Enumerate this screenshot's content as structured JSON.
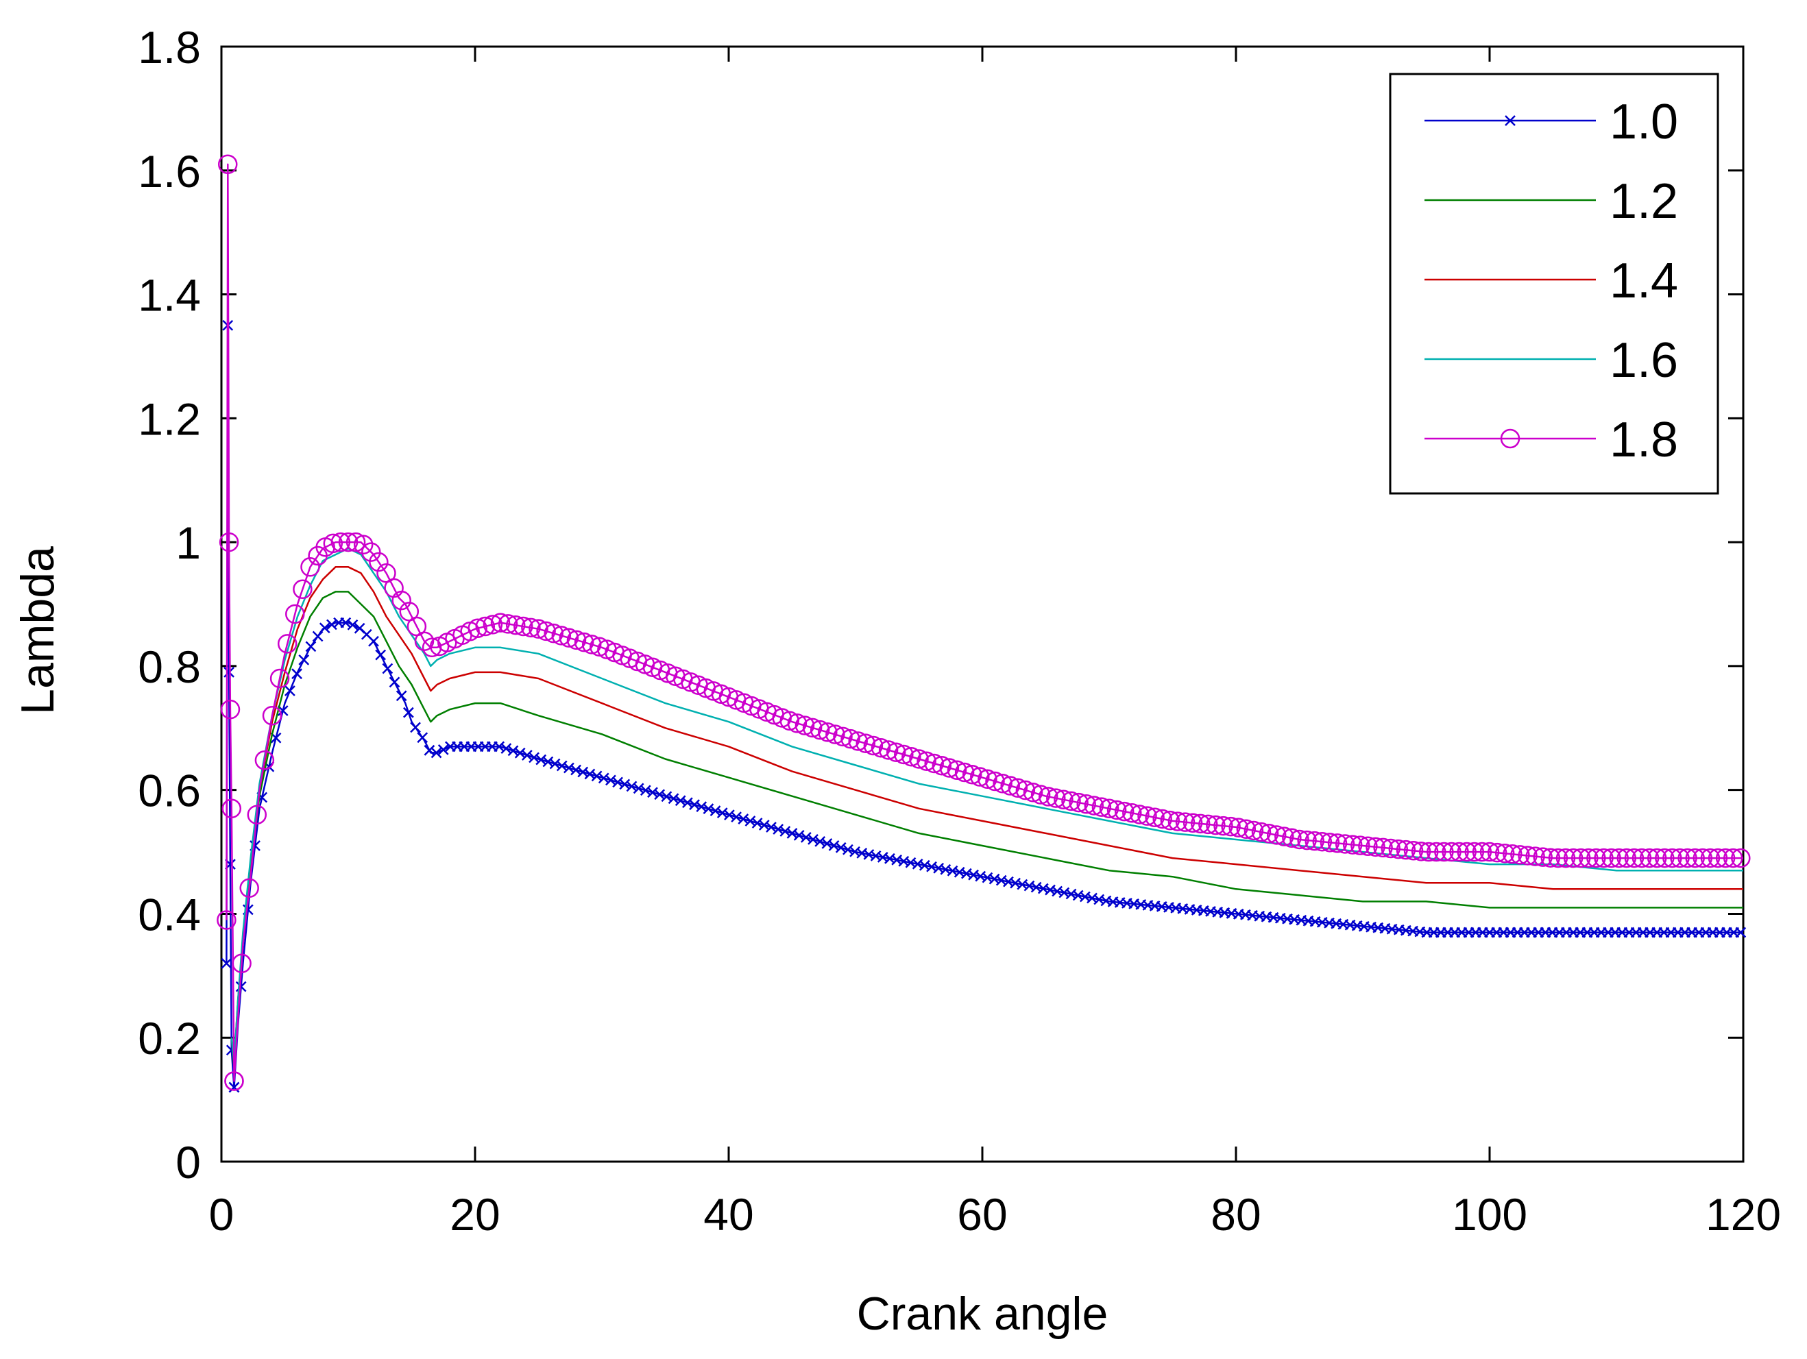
{
  "chart_data": {
    "type": "line",
    "title": "",
    "xlabel": "Crank angle",
    "ylabel": "Lambda",
    "xlim": [
      0,
      120
    ],
    "ylim": [
      0,
      1.8
    ],
    "xticks": [
      "0",
      "20",
      "40",
      "60",
      "80",
      "100",
      "120"
    ],
    "yticks": [
      "0",
      "0.2",
      "0.4",
      "0.6",
      "0.8",
      "1",
      "1.2",
      "1.4",
      "1.6",
      "1.8"
    ],
    "grid": false,
    "legend_position": "top-right",
    "series": [
      {
        "name": "1.0",
        "color": "#0000cc",
        "marker": "x",
        "x": [
          0.4,
          0.5,
          0.6,
          0.7,
          0.8,
          1.0,
          1.3,
          1.7,
          2.3,
          3.0,
          4.0,
          5.0,
          6.0,
          7.0,
          8.0,
          9.0,
          10.0,
          11.0,
          12.0,
          13.0,
          14.0,
          14.5,
          15.0,
          16.0,
          16.5,
          17.0,
          18.0,
          20.0,
          22.0,
          25.0,
          30.0,
          35.0,
          40.0,
          45.0,
          50.0,
          55.0,
          60.0,
          65.0,
          70.0,
          75.0,
          80.0,
          85.0,
          90.0,
          95.0,
          97.0,
          100.0,
          105.0,
          110.0,
          115.0,
          120.0
        ],
        "y": [
          0.32,
          1.35,
          0.79,
          0.48,
          0.18,
          0.12,
          0.22,
          0.32,
          0.45,
          0.57,
          0.66,
          0.74,
          0.79,
          0.83,
          0.86,
          0.87,
          0.87,
          0.86,
          0.84,
          0.8,
          0.76,
          0.74,
          0.71,
          0.68,
          0.66,
          0.66,
          0.67,
          0.67,
          0.67,
          0.65,
          0.62,
          0.59,
          0.56,
          0.53,
          0.5,
          0.48,
          0.46,
          0.44,
          0.42,
          0.41,
          0.4,
          0.39,
          0.38,
          0.37,
          0.37,
          0.37,
          0.37,
          0.37,
          0.37,
          0.37
        ]
      },
      {
        "name": "1.2",
        "color": "#007f00",
        "marker": "none",
        "x": [
          0.8,
          1.0,
          1.3,
          1.7,
          2.3,
          3.0,
          4.0,
          5.0,
          6.0,
          7.0,
          8.0,
          9.0,
          10.0,
          11.0,
          12.0,
          13.0,
          14.0,
          15.0,
          16.0,
          16.5,
          17.0,
          18.0,
          20.0,
          22.0,
          25.0,
          30.0,
          35.0,
          40.0,
          45.0,
          50.0,
          55.0,
          60.0,
          65.0,
          70.0,
          75.0,
          80.0,
          85.0,
          90.0,
          95.0,
          100.0,
          105.0,
          110.0,
          115.0,
          120.0
        ],
        "y": [
          0.2,
          0.15,
          0.25,
          0.35,
          0.47,
          0.59,
          0.69,
          0.77,
          0.83,
          0.88,
          0.91,
          0.92,
          0.92,
          0.9,
          0.88,
          0.84,
          0.8,
          0.77,
          0.73,
          0.71,
          0.72,
          0.73,
          0.74,
          0.74,
          0.72,
          0.69,
          0.65,
          0.62,
          0.59,
          0.56,
          0.53,
          0.51,
          0.49,
          0.47,
          0.46,
          0.44,
          0.43,
          0.42,
          0.42,
          0.41,
          0.41,
          0.41,
          0.41,
          0.41
        ]
      },
      {
        "name": "1.4",
        "color": "#cc0000",
        "marker": "none",
        "x": [
          0.8,
          1.0,
          1.3,
          1.7,
          2.3,
          3.0,
          4.0,
          5.0,
          6.0,
          7.0,
          8.0,
          9.0,
          10.0,
          11.0,
          12.0,
          13.0,
          14.0,
          15.0,
          16.0,
          16.5,
          17.0,
          18.0,
          20.0,
          22.0,
          25.0,
          30.0,
          35.0,
          40.0,
          45.0,
          50.0,
          55.0,
          60.0,
          65.0,
          70.0,
          75.0,
          80.0,
          85.0,
          90.0,
          95.0,
          100.0,
          105.0,
          110.0,
          115.0,
          120.0
        ],
        "y": [
          0.2,
          0.16,
          0.26,
          0.36,
          0.48,
          0.6,
          0.71,
          0.79,
          0.86,
          0.91,
          0.94,
          0.96,
          0.96,
          0.95,
          0.92,
          0.88,
          0.85,
          0.82,
          0.78,
          0.76,
          0.77,
          0.78,
          0.79,
          0.79,
          0.78,
          0.74,
          0.7,
          0.67,
          0.63,
          0.6,
          0.57,
          0.55,
          0.53,
          0.51,
          0.49,
          0.48,
          0.47,
          0.46,
          0.45,
          0.45,
          0.44,
          0.44,
          0.44,
          0.44
        ]
      },
      {
        "name": "1.6",
        "color": "#00b0b0",
        "marker": "none",
        "x": [
          0.8,
          1.0,
          1.3,
          1.7,
          2.3,
          3.0,
          4.0,
          5.0,
          6.0,
          7.0,
          8.0,
          9.0,
          10.0,
          11.0,
          12.0,
          13.0,
          14.0,
          15.0,
          16.0,
          16.5,
          17.0,
          18.0,
          20.0,
          22.0,
          25.0,
          30.0,
          35.0,
          40.0,
          45.0,
          50.0,
          55.0,
          60.0,
          65.0,
          70.0,
          75.0,
          80.0,
          85.0,
          90.0,
          95.0,
          100.0,
          105.0,
          110.0,
          115.0,
          120.0
        ],
        "y": [
          0.2,
          0.16,
          0.26,
          0.37,
          0.49,
          0.61,
          0.72,
          0.81,
          0.88,
          0.93,
          0.97,
          0.98,
          0.99,
          0.98,
          0.95,
          0.92,
          0.88,
          0.85,
          0.82,
          0.8,
          0.81,
          0.82,
          0.83,
          0.83,
          0.82,
          0.78,
          0.74,
          0.71,
          0.67,
          0.64,
          0.61,
          0.59,
          0.57,
          0.55,
          0.53,
          0.52,
          0.51,
          0.5,
          0.49,
          0.48,
          0.48,
          0.47,
          0.47,
          0.47
        ]
      },
      {
        "name": "1.8",
        "color": "#cc00cc",
        "marker": "o",
        "x": [
          0.4,
          0.5,
          0.6,
          0.7,
          0.8,
          1.0,
          1.3,
          1.7,
          2.3,
          3.0,
          4.0,
          5.0,
          6.0,
          7.0,
          8.0,
          9.0,
          10.0,
          11.0,
          12.0,
          13.0,
          14.0,
          14.5,
          15.0,
          16.0,
          16.5,
          17.0,
          18.0,
          20.0,
          22.0,
          25.0,
          30.0,
          35.0,
          40.0,
          45.0,
          50.0,
          55.0,
          60.0,
          65.0,
          70.0,
          75.0,
          80.0,
          85.0,
          90.0,
          95.0,
          100.0,
          105.0,
          110.0,
          115.0,
          120.0
        ],
        "y": [
          0.39,
          1.61,
          1.0,
          0.73,
          0.57,
          0.13,
          0.23,
          0.35,
          0.46,
          0.6,
          0.72,
          0.82,
          0.9,
          0.96,
          0.99,
          1.0,
          1.0,
          1.0,
          0.98,
          0.95,
          0.91,
          0.9,
          0.88,
          0.84,
          0.83,
          0.83,
          0.84,
          0.86,
          0.87,
          0.86,
          0.83,
          0.79,
          0.75,
          0.71,
          0.68,
          0.65,
          0.62,
          0.59,
          0.57,
          0.55,
          0.54,
          0.52,
          0.51,
          0.5,
          0.5,
          0.49,
          0.49,
          0.49,
          0.49
        ]
      }
    ]
  }
}
